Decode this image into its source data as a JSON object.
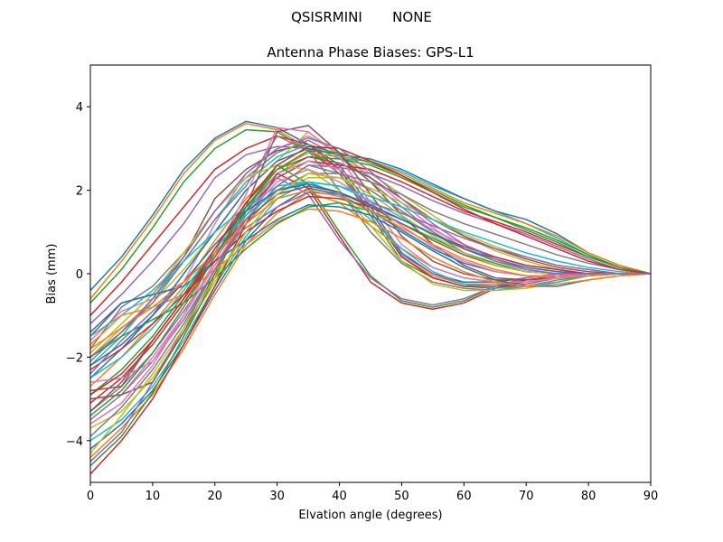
{
  "chart_data": {
    "type": "line",
    "suptitle": "QSISRMINI       NONE",
    "title": "Antenna Phase Biases: GPS-L1",
    "xlabel": "Elvation angle (degrees)",
    "ylabel": "Bias (mm)",
    "xlim": [
      0,
      90
    ],
    "ylim": [
      -5,
      5
    ],
    "xticks": [
      0,
      10,
      20,
      30,
      40,
      50,
      60,
      70,
      80,
      90
    ],
    "yticks": [
      -4,
      -2,
      0,
      2,
      4
    ],
    "grid": false,
    "legend": "none",
    "x": [
      0,
      5,
      10,
      15,
      20,
      25,
      30,
      35,
      40,
      45,
      50,
      55,
      60,
      65,
      70,
      75,
      80,
      85,
      90
    ],
    "palette": [
      "#1f77b4",
      "#ff7f0e",
      "#2ca02c",
      "#d62728",
      "#9467bd",
      "#8c564b",
      "#e377c2",
      "#7f7f7f",
      "#bcbd22",
      "#17becf"
    ],
    "series": [
      {
        "values": [
          -0.4,
          0.4,
          1.4,
          2.5,
          3.25,
          3.65,
          3.5,
          3.1,
          2.6,
          1.6,
          0.5,
          0.0,
          -0.2,
          -0.2,
          -0.1,
          0.0,
          0.0,
          0.0,
          0.0
        ]
      },
      {
        "values": [
          -0.6,
          0.3,
          1.3,
          2.4,
          3.2,
          3.6,
          3.45,
          3.0,
          2.5,
          1.5,
          0.4,
          -0.05,
          -0.25,
          -0.25,
          -0.15,
          -0.05,
          0.0,
          0.0,
          0.0
        ]
      },
      {
        "values": [
          -0.7,
          0.1,
          1.1,
          2.2,
          3.0,
          3.45,
          3.4,
          2.95,
          2.4,
          1.4,
          0.3,
          -0.1,
          -0.3,
          -0.3,
          -0.2,
          -0.1,
          0.0,
          0.0,
          0.0
        ]
      },
      {
        "values": [
          -1.0,
          -0.2,
          0.7,
          1.6,
          2.5,
          3.0,
          3.3,
          3.1,
          2.5,
          1.5,
          0.4,
          -0.1,
          -0.3,
          -0.35,
          -0.25,
          -0.1,
          0.0,
          0.0,
          0.0
        ]
      },
      {
        "values": [
          -1.2,
          -0.5,
          0.3,
          1.2,
          2.3,
          2.85,
          3.05,
          3.0,
          2.4,
          1.5,
          0.45,
          0.0,
          -0.25,
          -0.3,
          -0.25,
          -0.1,
          0.0,
          0.0,
          0.0
        ]
      },
      {
        "values": [
          -1.5,
          -0.7,
          -0.5,
          0.4,
          1.8,
          2.5,
          2.95,
          3.1,
          2.85,
          2.2,
          1.4,
          0.7,
          0.2,
          -0.1,
          -0.15,
          -0.1,
          0.0,
          0.0,
          0.0
        ]
      },
      {
        "values": [
          -1.6,
          -0.9,
          -0.6,
          -0.2,
          1.2,
          2.4,
          3.0,
          3.3,
          2.9,
          2.3,
          1.7,
          1.1,
          0.6,
          0.3,
          0.1,
          0.0,
          0.0,
          0.0,
          0.0
        ]
      },
      {
        "values": [
          -1.8,
          -0.8,
          -0.3,
          0.5,
          1.5,
          2.3,
          2.9,
          3.2,
          2.8,
          2.2,
          1.6,
          1.0,
          0.5,
          0.2,
          0.05,
          0.0,
          0.0,
          0.0,
          0.0
        ]
      },
      {
        "values": [
          -2.0,
          -1.3,
          -0.7,
          0.1,
          1.0,
          2.0,
          2.7,
          3.4,
          2.85,
          2.4,
          1.9,
          1.4,
          0.9,
          0.55,
          0.3,
          0.1,
          0.0,
          0.0,
          0.0
        ]
      },
      {
        "values": [
          -2.2,
          -1.5,
          -0.6,
          0.3,
          1.3,
          2.2,
          2.8,
          3.1,
          2.75,
          2.7,
          2.45,
          2.1,
          1.8,
          1.5,
          1.2,
          0.85,
          0.45,
          0.15,
          0.0
        ]
      },
      {
        "values": [
          -2.5,
          -1.8,
          -1.0,
          0.0,
          1.0,
          2.0,
          2.7,
          3.0,
          2.85,
          2.75,
          2.5,
          2.15,
          1.8,
          1.5,
          1.3,
          0.95,
          0.5,
          0.2,
          0.0
        ]
      },
      {
        "values": [
          -2.7,
          -2.0,
          -1.2,
          -0.3,
          0.8,
          1.8,
          2.5,
          2.9,
          2.8,
          2.7,
          2.4,
          2.05,
          1.7,
          1.45,
          1.2,
          0.9,
          0.5,
          0.2,
          0.0
        ]
      },
      {
        "values": [
          -2.9,
          -2.3,
          -1.5,
          -0.5,
          0.6,
          1.6,
          2.4,
          2.8,
          2.75,
          2.6,
          2.3,
          1.95,
          1.6,
          1.35,
          1.1,
          0.8,
          0.45,
          0.15,
          0.0
        ]
      },
      {
        "values": [
          -3.1,
          -2.5,
          -1.7,
          -0.7,
          0.4,
          1.5,
          2.3,
          2.7,
          2.6,
          2.5,
          2.2,
          1.85,
          1.5,
          1.25,
          1.0,
          0.7,
          0.4,
          0.15,
          0.0
        ]
      },
      {
        "values": [
          -3.3,
          -2.7,
          -1.9,
          -0.9,
          0.2,
          1.3,
          2.1,
          2.6,
          2.55,
          2.4,
          2.1,
          1.75,
          1.45,
          1.2,
          0.95,
          0.65,
          0.35,
          0.1,
          0.0
        ]
      },
      {
        "values": [
          -2.8,
          -2.7,
          -1.6,
          -0.6,
          0.4,
          1.7,
          2.5,
          2.8,
          2.65,
          2.3,
          1.8,
          1.3,
          0.9,
          0.6,
          0.35,
          0.15,
          0.05,
          0.0,
          0.0
        ]
      },
      {
        "values": [
          -3.0,
          -2.9,
          -2.0,
          -1.0,
          0.3,
          1.5,
          2.4,
          2.7,
          2.5,
          2.0,
          1.5,
          1.05,
          0.7,
          0.4,
          0.2,
          0.1,
          0.0,
          0.0,
          0.0
        ]
      },
      {
        "values": [
          -3.5,
          -2.9,
          -2.1,
          -1.1,
          0.1,
          1.2,
          2.0,
          2.4,
          2.4,
          2.2,
          1.9,
          1.5,
          1.2,
          0.95,
          0.7,
          0.45,
          0.25,
          0.1,
          0.0
        ]
      },
      {
        "values": [
          -3.7,
          -3.3,
          -2.5,
          -1.4,
          -0.2,
          1.0,
          1.9,
          2.3,
          2.3,
          2.05,
          1.7,
          1.3,
          0.95,
          0.65,
          0.4,
          0.2,
          0.1,
          0.0,
          0.0
        ]
      },
      {
        "values": [
          -4.0,
          -3.5,
          -2.7,
          -1.6,
          -0.3,
          0.9,
          1.8,
          2.2,
          2.1,
          1.75,
          1.35,
          0.95,
          0.6,
          0.35,
          0.15,
          0.05,
          0.0,
          0.0,
          0.0
        ]
      },
      {
        "values": [
          -4.2,
          -3.6,
          -2.8,
          -1.7,
          -0.4,
          0.8,
          1.6,
          2.05,
          1.9,
          1.5,
          1.05,
          0.6,
          0.25,
          0.05,
          -0.05,
          -0.05,
          0.0,
          0.0,
          0.0
        ]
      },
      {
        "values": [
          -4.4,
          -3.7,
          -2.9,
          -1.8,
          -0.5,
          0.7,
          1.45,
          1.95,
          1.7,
          1.15,
          0.6,
          0.15,
          -0.1,
          -0.2,
          -0.2,
          -0.1,
          -0.05,
          0.0,
          0.0
        ]
      },
      {
        "values": [
          -4.6,
          -3.9,
          -2.85,
          -1.5,
          -0.1,
          1.5,
          2.6,
          2.15,
          1.0,
          -0.05,
          -0.65,
          -0.8,
          -0.65,
          -0.3,
          -0.1,
          0.0,
          0.0,
          0.0,
          0.0
        ]
      },
      {
        "values": [
          -4.8,
          -4.0,
          -3.0,
          -1.7,
          -0.3,
          1.2,
          2.4,
          2.05,
          0.9,
          -0.2,
          -0.7,
          -0.85,
          -0.7,
          -0.35,
          -0.15,
          -0.05,
          0.0,
          0.0,
          0.0
        ]
      },
      {
        "values": [
          -4.5,
          -3.8,
          -2.6,
          -1.3,
          0.1,
          1.4,
          2.3,
          1.9,
          0.8,
          -0.1,
          -0.6,
          -0.75,
          -0.6,
          -0.3,
          -0.1,
          0.0,
          0.0,
          0.0,
          0.0
        ]
      },
      {
        "values": [
          -3.0,
          -2.9,
          -2.6,
          -1.4,
          0.0,
          1.6,
          3.4,
          3.55,
          2.9,
          1.9,
          0.9,
          0.3,
          0.0,
          -0.15,
          -0.15,
          -0.1,
          0.0,
          0.0,
          0.0
        ]
      },
      {
        "values": [
          -2.6,
          -2.5,
          -2.1,
          -1.0,
          0.5,
          1.9,
          3.5,
          3.4,
          2.8,
          1.7,
          0.7,
          0.15,
          -0.1,
          -0.2,
          -0.2,
          -0.1,
          0.0,
          0.0,
          0.0
        ]
      },
      {
        "values": [
          -2.1,
          -1.4,
          -0.7,
          0.3,
          1.3,
          2.1,
          3.3,
          2.95,
          2.0,
          1.0,
          0.25,
          -0.2,
          -0.35,
          -0.4,
          -0.3,
          -0.15,
          -0.05,
          0.0,
          0.0
        ]
      },
      {
        "values": [
          -1.9,
          -1.2,
          -0.5,
          0.5,
          1.5,
          2.3,
          2.6,
          2.5,
          2.0,
          1.15,
          0.3,
          -0.25,
          -0.4,
          -0.4,
          -0.35,
          -0.2,
          -0.05,
          0.0,
          0.0
        ]
      },
      {
        "values": [
          -1.5,
          -1.0,
          -0.4,
          0.3,
          1.0,
          1.6,
          2.1,
          2.2,
          1.9,
          1.3,
          0.6,
          0.05,
          -0.25,
          -0.35,
          -0.3,
          -0.2,
          -0.05,
          0.0,
          0.0
        ]
      },
      {
        "values": [
          -1.4,
          -0.7,
          -0.5,
          -0.3,
          0.3,
          0.8,
          1.3,
          1.65,
          1.6,
          1.4,
          1.0,
          0.55,
          0.15,
          -0.15,
          -0.3,
          -0.3,
          -0.15,
          -0.05,
          0.0
        ]
      },
      {
        "values": [
          -1.7,
          -1.0,
          -0.8,
          -0.5,
          0.1,
          0.7,
          1.25,
          1.55,
          1.5,
          1.25,
          0.85,
          0.4,
          0.05,
          -0.2,
          -0.3,
          -0.25,
          -0.15,
          -0.05,
          0.0
        ]
      },
      {
        "values": [
          -2.0,
          -1.5,
          -1.1,
          -0.7,
          -0.1,
          0.6,
          1.2,
          1.6,
          1.7,
          1.5,
          1.2,
          0.85,
          0.5,
          0.25,
          0.05,
          0.0,
          0.0,
          0.0,
          0.0
        ]
      },
      {
        "values": [
          -2.3,
          -1.8,
          -1.2,
          -0.5,
          0.3,
          1.0,
          1.5,
          1.85,
          1.8,
          1.6,
          1.3,
          0.95,
          0.65,
          0.4,
          0.2,
          0.1,
          0.0,
          0.0,
          0.0
        ]
      },
      {
        "values": [
          -2.4,
          -1.6,
          -0.9,
          -0.2,
          0.5,
          1.1,
          1.6,
          1.95,
          1.9,
          1.7,
          1.45,
          1.15,
          0.85,
          0.6,
          0.4,
          0.2,
          0.1,
          0.0,
          0.0
        ]
      },
      {
        "values": [
          -3.3,
          -2.6,
          -1.6,
          -0.6,
          0.5,
          1.3,
          1.9,
          2.1,
          1.95,
          1.6,
          1.2,
          0.8,
          0.45,
          0.2,
          0.05,
          0.0,
          0.0,
          0.0,
          0.0
        ]
      },
      {
        "values": [
          -3.6,
          -3.1,
          -2.2,
          -1.0,
          0.2,
          1.4,
          2.2,
          2.5,
          2.2,
          1.7,
          1.15,
          0.65,
          0.3,
          0.05,
          -0.05,
          -0.05,
          0.0,
          0.0,
          0.0
        ]
      },
      {
        "values": [
          -3.9,
          -3.2,
          -2.3,
          -1.2,
          0.1,
          1.3,
          2.1,
          2.6,
          2.4,
          2.0,
          1.5,
          1.0,
          0.6,
          0.3,
          0.1,
          0.0,
          0.0,
          0.0,
          0.0
        ]
      },
      {
        "values": [
          -4.3,
          -3.4,
          -2.4,
          -1.3,
          -0.1,
          1.0,
          1.9,
          2.4,
          2.3,
          1.9,
          1.4,
          0.9,
          0.5,
          0.2,
          0.05,
          0.0,
          0.0,
          0.0,
          0.0
        ]
      },
      {
        "values": [
          -2.5,
          -2.0,
          -1.3,
          -0.4,
          0.6,
          1.4,
          2.0,
          2.2,
          2.1,
          1.85,
          1.6,
          1.3,
          1.0,
          0.75,
          0.5,
          0.3,
          0.15,
          0.05,
          0.0
        ]
      },
      {
        "values": [
          -2.2,
          -1.7,
          -1.0,
          -0.2,
          0.7,
          1.5,
          2.0,
          2.15,
          1.95,
          1.65,
          1.3,
          0.95,
          0.6,
          0.35,
          0.15,
          0.05,
          0.0,
          0.0,
          0.0
        ]
      },
      {
        "values": [
          -1.8,
          -1.3,
          -0.8,
          -0.2,
          0.5,
          1.2,
          1.8,
          2.0,
          1.85,
          1.5,
          1.1,
          0.7,
          0.35,
          0.1,
          -0.05,
          -0.1,
          -0.05,
          0.0,
          0.0
        ]
      },
      {
        "values": [
          -3.4,
          -2.8,
          -1.9,
          -0.8,
          0.4,
          1.6,
          2.5,
          2.95,
          2.9,
          2.65,
          2.35,
          2.0,
          1.65,
          1.35,
          1.05,
          0.75,
          0.4,
          0.15,
          0.0
        ]
      },
      {
        "values": [
          -2.9,
          -2.4,
          -1.6,
          -0.6,
          0.6,
          1.7,
          2.6,
          3.05,
          3.0,
          2.7,
          2.35,
          1.95,
          1.55,
          1.2,
          0.9,
          0.6,
          0.3,
          0.1,
          0.0
        ]
      },
      {
        "values": [
          -2.0,
          -1.4,
          -0.6,
          0.4,
          1.5,
          2.4,
          3.0,
          3.25,
          3.0,
          2.45,
          1.8,
          1.2,
          0.7,
          0.35,
          0.1,
          0.0,
          0.0,
          0.0,
          0.0
        ]
      }
    ]
  }
}
